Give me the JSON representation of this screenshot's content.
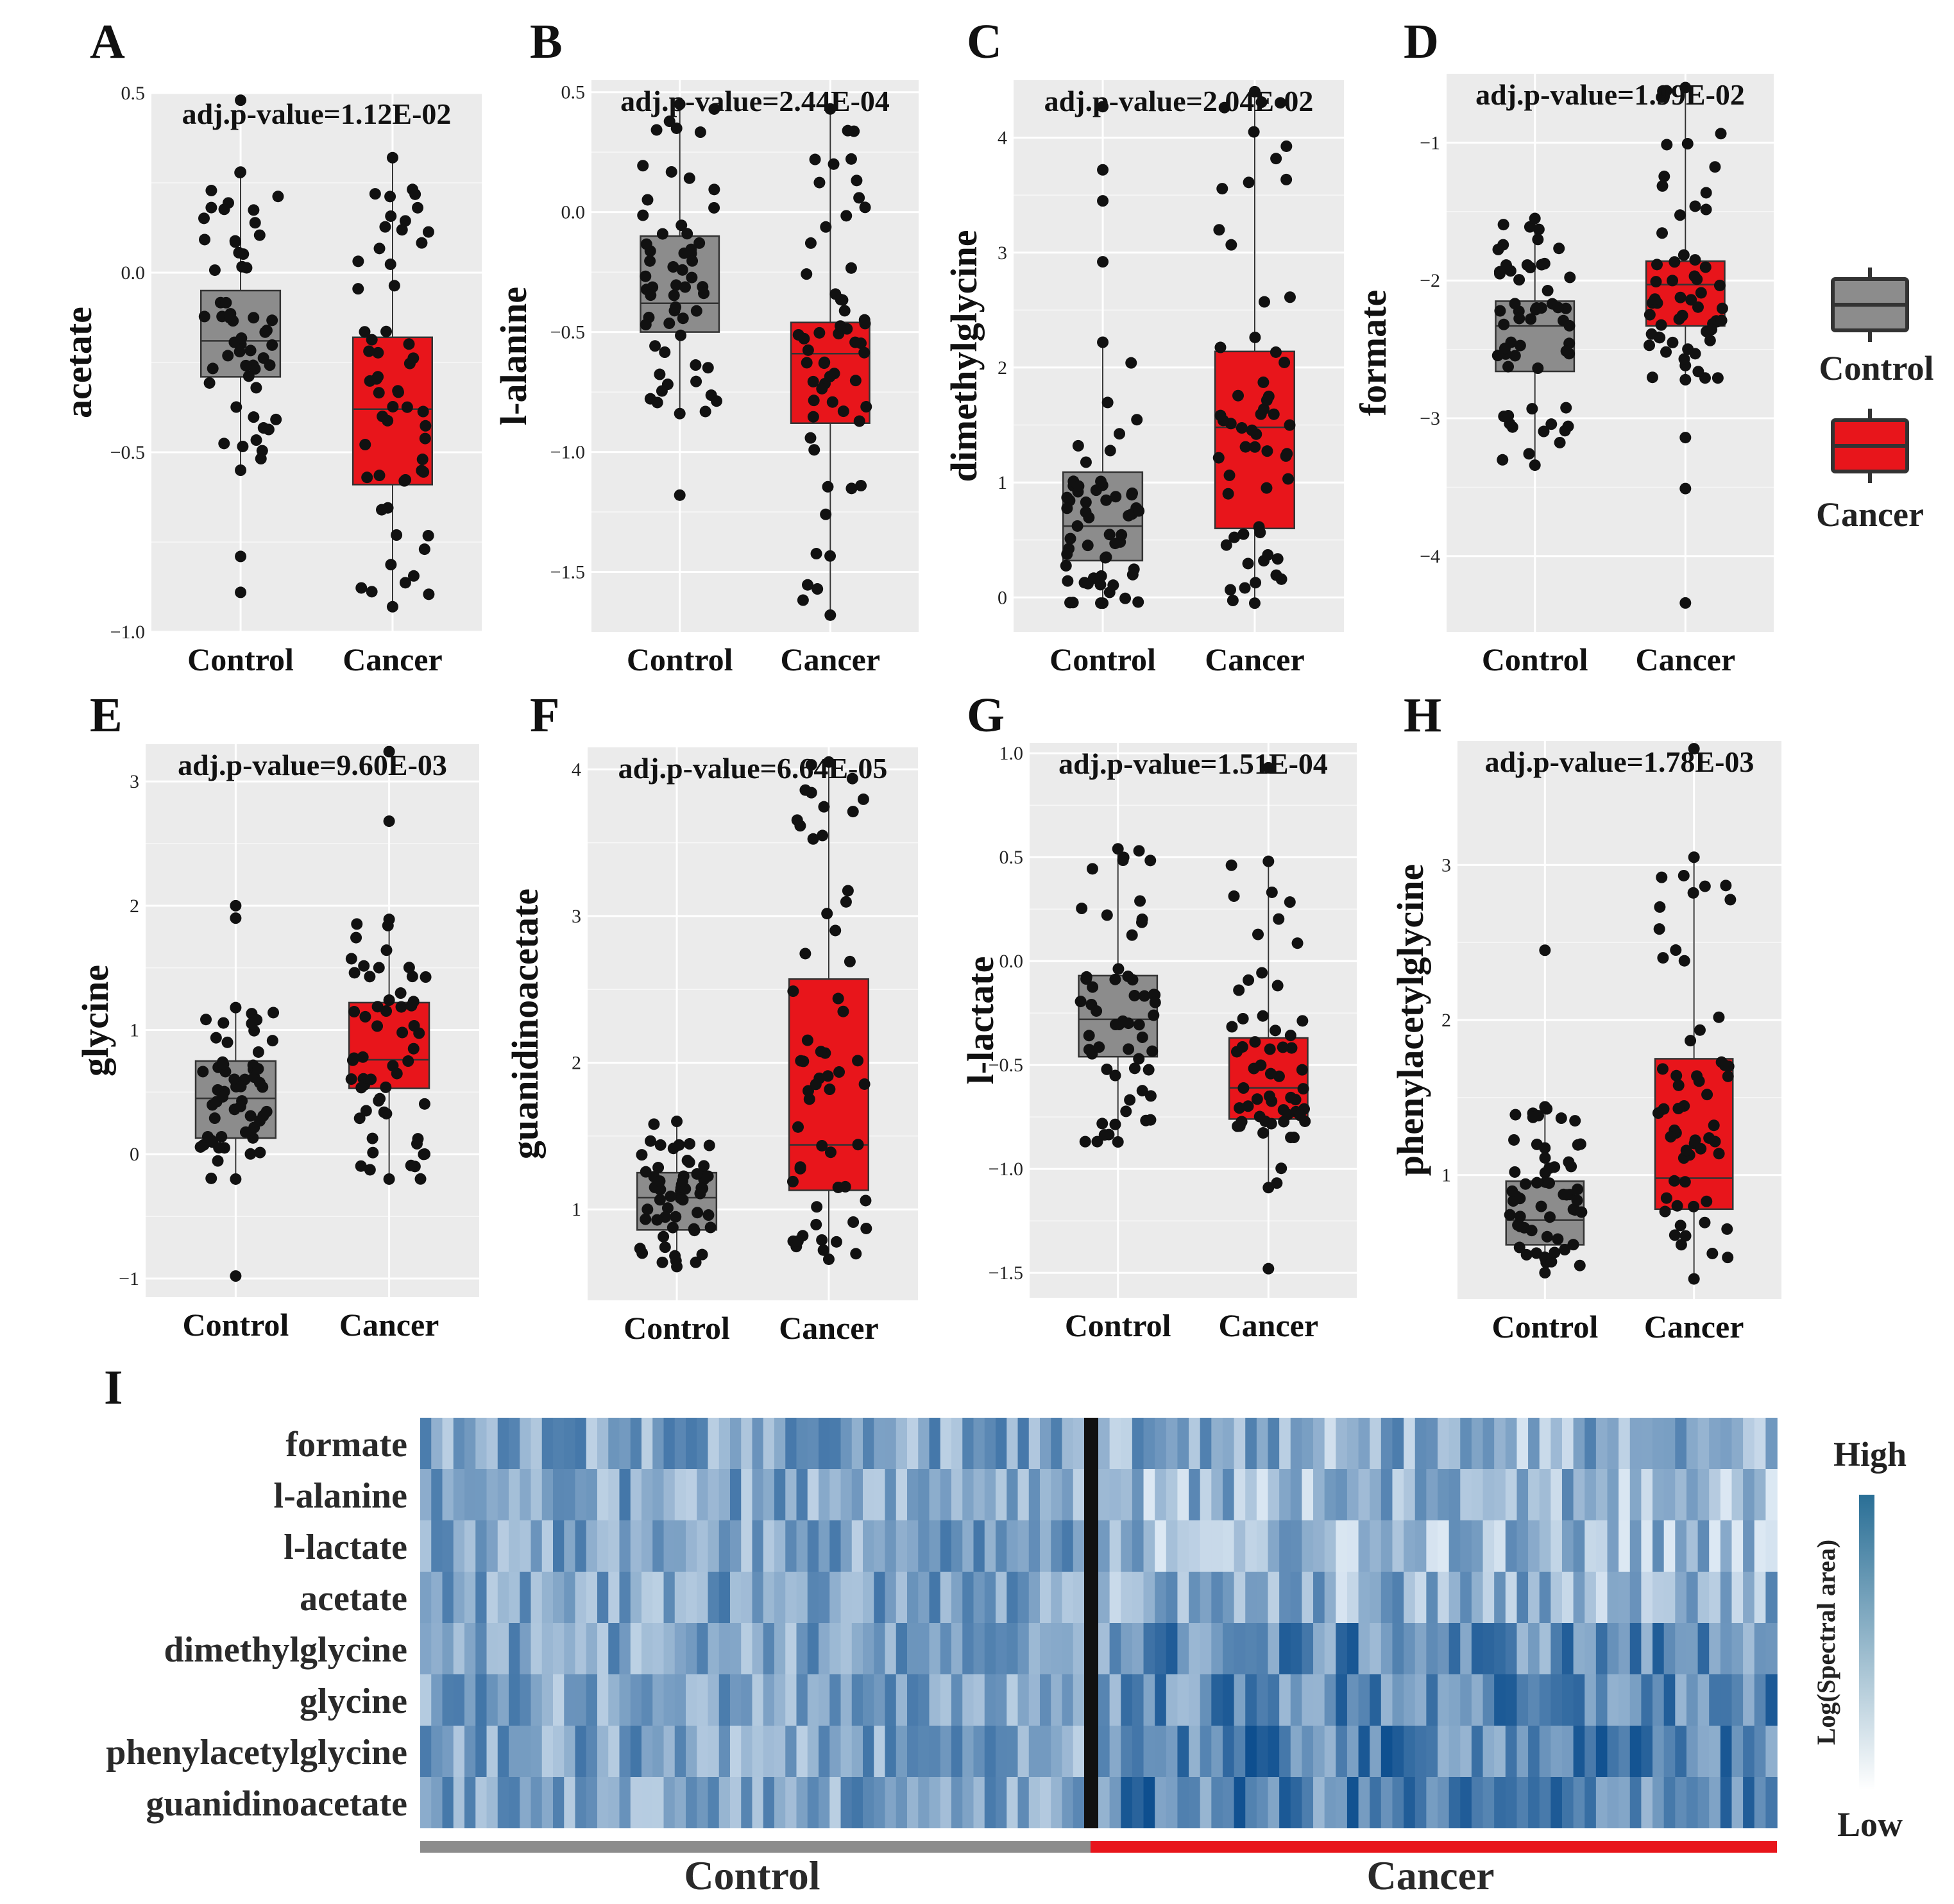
{
  "colors": {
    "control": "#8c8c8c",
    "cancer": "#e8151b",
    "panel_bg": "#ebebeb",
    "heat_low": "#dce8f3",
    "heat_high": "#0e4f8f",
    "scale_top": "#2a6f96"
  },
  "legend": {
    "control_label": "Control",
    "cancer_label": "Cancer"
  },
  "chart_data": [
    {
      "type": "box",
      "letter": "A",
      "metabolite": "acetate",
      "ylabel": "acetate",
      "p_text": "adj.p-value=1.12E-02",
      "ylim": [
        -1.0,
        0.5
      ],
      "ticks": [
        -1.0,
        -0.5,
        0.0,
        0.5
      ],
      "tick_labels": [
        "−1.0",
        "−0.5",
        "0.0",
        "0.5"
      ],
      "categories": [
        "Control",
        "Cancer"
      ],
      "groups": [
        {
          "name": "Control",
          "q1": -0.29,
          "median": -0.19,
          "q3": -0.05,
          "whisker_low": -0.55,
          "whisker_high": 0.28,
          "outliers": [
            -0.79,
            -0.89,
            0.48
          ]
        },
        {
          "name": "Cancer",
          "q1": -0.59,
          "median": -0.38,
          "q3": -0.18,
          "whisker_low": -0.93,
          "whisker_high": 0.32,
          "outliers": []
        }
      ]
    },
    {
      "type": "box",
      "letter": "B",
      "metabolite": "l-alanine",
      "ylabel": "l-alanine",
      "p_text": "adj.p-value=2.44E-04",
      "ylim": [
        -1.75,
        0.55
      ],
      "ticks": [
        -1.5,
        -1.0,
        -0.5,
        0.0,
        0.5
      ],
      "tick_labels": [
        "−1.5",
        "−1.0",
        "−0.5",
        "0.0",
        "0.5"
      ],
      "categories": [
        "Control",
        "Cancer"
      ],
      "groups": [
        {
          "name": "Control",
          "q1": -0.5,
          "median": -0.38,
          "q3": -0.1,
          "whisker_low": -0.84,
          "whisker_high": 0.45,
          "outliers": [
            -1.18
          ]
        },
        {
          "name": "Cancer",
          "q1": -0.88,
          "median": -0.59,
          "q3": -0.46,
          "whisker_low": -1.68,
          "whisker_high": 0.43,
          "outliers": []
        }
      ]
    },
    {
      "type": "box",
      "letter": "C",
      "metabolite": "dimethylglycine",
      "ylabel": "dimethylglycine",
      "p_text": "adj.p-value=2.04E-02",
      "ylim": [
        -0.3,
        4.5
      ],
      "ticks": [
        0,
        1,
        2,
        3,
        4
      ],
      "tick_labels": [
        "0",
        "1",
        "2",
        "3",
        "4"
      ],
      "categories": [
        "Control",
        "Cancer"
      ],
      "groups": [
        {
          "name": "Control",
          "q1": 0.32,
          "median": 0.62,
          "q3": 1.09,
          "whisker_low": -0.05,
          "whisker_high": 2.22,
          "outliers": [
            2.92,
            3.45,
            3.72,
            4.27
          ]
        },
        {
          "name": "Cancer",
          "q1": 0.6,
          "median": 1.48,
          "q3": 2.14,
          "whisker_low": -0.05,
          "whisker_high": 4.4,
          "outliers": []
        }
      ]
    },
    {
      "type": "box",
      "letter": "D",
      "metabolite": "formate",
      "ylabel": "formate",
      "p_text": "adj.p-value=1.99E-02",
      "ylim": [
        -4.55,
        -0.5
      ],
      "ticks": [
        -4,
        -3,
        -2,
        -1
      ],
      "tick_labels": [
        "−4",
        "−3",
        "−2",
        "−1"
      ],
      "categories": [
        "Control",
        "Cancer"
      ],
      "groups": [
        {
          "name": "Control",
          "q1": -2.66,
          "median": -2.33,
          "q3": -2.15,
          "whisker_low": -3.34,
          "whisker_high": -1.55,
          "outliers": []
        },
        {
          "name": "Cancer",
          "q1": -2.33,
          "median": -2.03,
          "q3": -1.86,
          "whisker_low": -2.72,
          "whisker_high": -0.6,
          "outliers": [
            -3.14,
            -3.51,
            -4.34
          ]
        }
      ]
    },
    {
      "type": "box",
      "letter": "E",
      "metabolite": "glycine",
      "ylabel": "glycine",
      "p_text": "adj.p-value=9.60E-03",
      "ylim": [
        -1.15,
        3.3
      ],
      "ticks": [
        -1,
        0,
        1,
        2,
        3
      ],
      "tick_labels": [
        "−1",
        "0",
        "1",
        "2",
        "3"
      ],
      "categories": [
        "Control",
        "Cancer"
      ],
      "groups": [
        {
          "name": "Control",
          "q1": 0.13,
          "median": 0.45,
          "q3": 0.75,
          "whisker_low": -0.2,
          "whisker_high": 1.18,
          "outliers": [
            1.9,
            2.0,
            -0.98
          ]
        },
        {
          "name": "Cancer",
          "q1": 0.53,
          "median": 0.76,
          "q3": 1.22,
          "whisker_low": -0.2,
          "whisker_high": 1.89,
          "outliers": [
            2.68,
            3.24
          ]
        }
      ]
    },
    {
      "type": "box",
      "letter": "F",
      "metabolite": "guanidinoacetate",
      "ylabel": "guanidinoacetate",
      "p_text": "adj.p-value=6.64E-05",
      "ylim": [
        0.38,
        4.15
      ],
      "ticks": [
        1,
        2,
        3,
        4
      ],
      "tick_labels": [
        "1",
        "2",
        "3",
        "4"
      ],
      "categories": [
        "Control",
        "Cancer"
      ],
      "groups": [
        {
          "name": "Control",
          "q1": 0.86,
          "median": 1.08,
          "q3": 1.25,
          "whisker_low": 0.61,
          "whisker_high": 1.6,
          "outliers": []
        },
        {
          "name": "Cancer",
          "q1": 1.13,
          "median": 1.44,
          "q3": 2.57,
          "whisker_low": 0.66,
          "whisker_high": 4.05,
          "outliers": []
        }
      ]
    },
    {
      "type": "box",
      "letter": "G",
      "metabolite": "l-lactate",
      "ylabel": "l-lactate",
      "p_text": "adj.p-value=1.51E-04",
      "ylim": [
        -1.62,
        1.05
      ],
      "ticks": [
        -1.5,
        -1.0,
        -0.5,
        0.0,
        0.5,
        1.0
      ],
      "tick_labels": [
        "−1.5",
        "−1.0",
        "−0.5",
        "0.0",
        "0.5",
        "1.0"
      ],
      "categories": [
        "Control",
        "Cancer"
      ],
      "groups": [
        {
          "name": "Control",
          "q1": -0.46,
          "median": -0.28,
          "q3": -0.07,
          "whisker_low": -0.87,
          "whisker_high": 0.54,
          "outliers": []
        },
        {
          "name": "Cancer",
          "q1": -0.76,
          "median": -0.61,
          "q3": -0.37,
          "whisker_low": -1.09,
          "whisker_high": 0.48,
          "outliers": [
            -1.48,
            0.93
          ]
        }
      ]
    },
    {
      "type": "box",
      "letter": "H",
      "metabolite": "phenylacetylglycine",
      "ylabel": "phenylacetylglycine",
      "p_text": "adj.p-value=1.78E-03",
      "ylim": [
        0.2,
        3.8
      ],
      "ticks": [
        1,
        2,
        3
      ],
      "tick_labels": [
        "1",
        "2",
        "3"
      ],
      "categories": [
        "Control",
        "Cancer"
      ],
      "groups": [
        {
          "name": "Control",
          "q1": 0.55,
          "median": 0.71,
          "q3": 0.96,
          "whisker_low": 0.37,
          "whisker_high": 1.44,
          "outliers": [
            2.45
          ]
        },
        {
          "name": "Cancer",
          "q1": 0.78,
          "median": 0.98,
          "q3": 1.75,
          "whisker_low": 0.33,
          "whisker_high": 3.05,
          "outliers": [
            3.75
          ]
        }
      ]
    },
    {
      "type": "heatmap",
      "letter": "I",
      "rows": [
        "formate",
        "l-alanine",
        "l-lactate",
        "acetate",
        "dimethylglycine",
        "glycine",
        "phenylacetylglycine",
        "guanidinoacetate"
      ],
      "groups": [
        "Control",
        "Cancer"
      ],
      "samples_per_group": 60,
      "scale_high": "High",
      "scale_low": "Low",
      "scale_title": "Log(Spectral area)"
    }
  ]
}
